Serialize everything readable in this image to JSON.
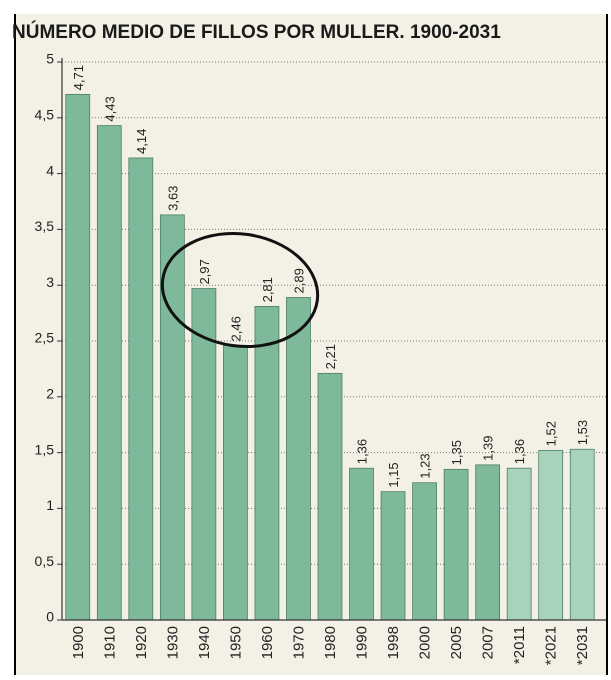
{
  "chart_data": {
    "type": "bar",
    "title": "NÚMERO MEDIO DE FILLOS POR MULLER. 1900-2031",
    "categories": [
      "1900",
      "1910",
      "1920",
      "1930",
      "1940",
      "1950",
      "1960",
      "1970",
      "1980",
      "1990",
      "1998",
      "2000",
      "2005",
      "2007",
      "*2011",
      "*2021",
      "*2031"
    ],
    "values": [
      4.71,
      4.43,
      4.14,
      3.63,
      2.97,
      2.46,
      2.81,
      2.89,
      2.21,
      1.36,
      1.15,
      1.23,
      1.35,
      1.39,
      1.36,
      1.52,
      1.53
    ],
    "value_labels": [
      "4,71",
      "4,43",
      "4,14",
      "3,63",
      "2,97",
      "2,46",
      "2,81",
      "2,89",
      "2,21",
      "1,36",
      "1,15",
      "1,23",
      "1,35",
      "1,39",
      "1,36",
      "1,52",
      "1,53"
    ],
    "colors": [
      "#7fb99b",
      "#7fb99b",
      "#7fb99b",
      "#7fb99b",
      "#7fb99b",
      "#7fb99b",
      "#7fb99b",
      "#7fb99b",
      "#7fb99b",
      "#7fb99b",
      "#7fb99b",
      "#7fb99b",
      "#7fb99b",
      "#7fb99b",
      "#a9d2bd",
      "#a9d2bd",
      "#a9d2bd"
    ],
    "ylim": [
      0,
      5
    ],
    "yticks": [
      0,
      {
        "value": 0.5,
        "label": "0,5"
      },
      1,
      {
        "value": 1.5,
        "label": "1,5"
      },
      2,
      {
        "value": 2.5,
        "label": "2,5"
      },
      3,
      {
        "value": 3.5,
        "label": "3,5"
      },
      4,
      {
        "value": 4.5,
        "label": "4,5"
      },
      5
    ],
    "grid": true
  }
}
